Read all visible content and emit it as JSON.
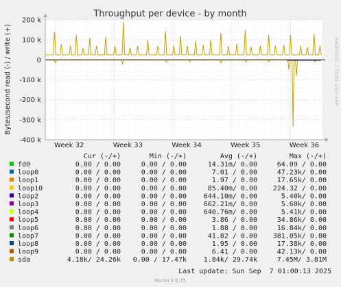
{
  "title": "Throughput per device - by month",
  "side_label": "RRDTOOL / TOBI OETIKER",
  "footer": "Munin 2.0.75",
  "last_update": "Last update: Sun Sep  7 01:00:13 2025",
  "chart_data": {
    "type": "line",
    "title": "Throughput per device - by month",
    "ylabel": "Bytes/second read (-) / write (+)",
    "ylim": [
      -400000,
      200000
    ],
    "y_ticks": [
      {
        "value": 200000,
        "label": "200 k"
      },
      {
        "value": 100000,
        "label": "100 k"
      },
      {
        "value": 0,
        "label": "0"
      },
      {
        "value": -100000,
        "label": "-100 k"
      },
      {
        "value": -200000,
        "label": "-200 k"
      },
      {
        "value": -300000,
        "label": "-300 k"
      },
      {
        "value": -400000,
        "label": "-400 k"
      }
    ],
    "x_ticks": [
      "Week 32",
      "Week 33",
      "Week 34",
      "Week 35",
      "Week 36"
    ],
    "x_range_days": [
      0,
      33
    ],
    "week_positions_days": [
      1.2,
      8.2,
      15.2,
      22.2,
      29.2
    ],
    "series": [
      {
        "name": "sda",
        "color": "#c8a000",
        "write_baseline": 25000,
        "write_peaks": [
          {
            "day": 1.1,
            "value": 140000
          },
          {
            "day": 1.9,
            "value": 80000
          },
          {
            "day": 3.0,
            "value": 70000
          },
          {
            "day": 3.7,
            "value": 125000
          },
          {
            "day": 4.5,
            "value": 60000
          },
          {
            "day": 5.3,
            "value": 110000
          },
          {
            "day": 6.1,
            "value": 70000
          },
          {
            "day": 7.2,
            "value": 115000
          },
          {
            "day": 8.3,
            "value": 70000
          },
          {
            "day": 9.3,
            "value": 190000
          },
          {
            "day": 10.1,
            "value": 60000
          },
          {
            "day": 11.0,
            "value": 70000
          },
          {
            "day": 12.2,
            "value": 100000
          },
          {
            "day": 13.4,
            "value": 70000
          },
          {
            "day": 14.3,
            "value": 145000
          },
          {
            "day": 15.3,
            "value": 70000
          },
          {
            "day": 16.1,
            "value": 120000
          },
          {
            "day": 16.9,
            "value": 70000
          },
          {
            "day": 17.9,
            "value": 95000
          },
          {
            "day": 18.8,
            "value": 75000
          },
          {
            "day": 19.7,
            "value": 100000
          },
          {
            "day": 20.9,
            "value": 135000
          },
          {
            "day": 21.8,
            "value": 70000
          },
          {
            "day": 22.8,
            "value": 80000
          },
          {
            "day": 23.8,
            "value": 150000
          },
          {
            "day": 24.5,
            "value": 65000
          },
          {
            "day": 25.6,
            "value": 70000
          },
          {
            "day": 26.6,
            "value": 125000
          },
          {
            "day": 27.4,
            "value": 70000
          },
          {
            "day": 28.4,
            "value": 75000
          },
          {
            "day": 29.2,
            "value": 125000
          },
          {
            "day": 30.4,
            "value": 70000
          },
          {
            "day": 31.2,
            "value": 65000
          },
          {
            "day": 32.0,
            "value": 130000
          },
          {
            "day": 32.7,
            "value": 70000
          }
        ],
        "read_dips": [
          {
            "day": 1.2,
            "value": -15000
          },
          {
            "day": 9.2,
            "value": -20000
          },
          {
            "day": 14.4,
            "value": -12000
          },
          {
            "day": 17.2,
            "value": -10000
          },
          {
            "day": 20.9,
            "value": -15000
          },
          {
            "day": 23.9,
            "value": -12000
          },
          {
            "day": 26.6,
            "value": -10000
          },
          {
            "day": 29.0,
            "value": -50000
          },
          {
            "day": 29.5,
            "value": -335000
          },
          {
            "day": 29.9,
            "value": -80000
          },
          {
            "day": 32.1,
            "value": -10000
          }
        ]
      },
      {
        "name": "loop2",
        "color": "#1a0a6b",
        "read_line": {
          "from_day": 28.8,
          "to_day": 33,
          "value": -2000
        }
      }
    ]
  },
  "legend": {
    "headers": {
      "cur": "Cur (-/+)",
      "min": "Min (-/+)",
      "avg": "Avg (-/+)",
      "max": "Max (-/+)"
    },
    "rows": [
      {
        "name": "fd0",
        "color": "#00cc00",
        "cur": "0.00 /  0.00",
        "min": "0.00 /  0.00",
        "avg": "14.31m/  0.00",
        "max": "64.09 /  0.00"
      },
      {
        "name": "loop0",
        "color": "#0066b3",
        "cur": "0.00 /  0.00",
        "min": "0.00 /  0.00",
        "avg": "7.01 /  0.00",
        "max": "47.23k/  0.00"
      },
      {
        "name": "loop1",
        "color": "#ff8000",
        "cur": "0.00 /  0.00",
        "min": "0.00 /  0.00",
        "avg": "1.97 /  0.00",
        "max": "17.65k/  0.00"
      },
      {
        "name": "loop10",
        "color": "#ffcc00",
        "cur": "0.00 /  0.00",
        "min": "0.00 /  0.00",
        "avg": "85.40m/  0.00",
        "max": "224.32 /  0.00"
      },
      {
        "name": "loop2",
        "color": "#330099",
        "cur": "0.00 /  0.00",
        "min": "0.00 /  0.00",
        "avg": "644.10m/  0.00",
        "max": "5.40k/  0.00"
      },
      {
        "name": "loop3",
        "color": "#990099",
        "cur": "0.00 /  0.00",
        "min": "0.00 /  0.00",
        "avg": "662.21m/  0.00",
        "max": "5.60k/  0.00"
      },
      {
        "name": "loop4",
        "color": "#ccff00",
        "cur": "0.00 /  0.00",
        "min": "0.00 /  0.00",
        "avg": "640.76m/  0.00",
        "max": "5.41k/  0.00"
      },
      {
        "name": "loop5",
        "color": "#ff0000",
        "cur": "0.00 /  0.00",
        "min": "0.00 /  0.00",
        "avg": "3.86 /  0.00",
        "max": "34.86k/  0.00"
      },
      {
        "name": "loop6",
        "color": "#808080",
        "cur": "0.00 /  0.00",
        "min": "0.00 /  0.00",
        "avg": "1.88 /  0.00",
        "max": "16.84k/  0.00"
      },
      {
        "name": "loop7",
        "color": "#008f00",
        "cur": "0.00 /  0.00",
        "min": "0.00 /  0.00",
        "avg": "41.82 /  0.00",
        "max": "381.05k/  0.00"
      },
      {
        "name": "loop8",
        "color": "#00487d",
        "cur": "0.00 /  0.00",
        "min": "0.00 /  0.00",
        "avg": "1.95 /  0.00",
        "max": "17.38k/  0.00"
      },
      {
        "name": "loop9",
        "color": "#b35a00",
        "cur": "0.00 /  0.00",
        "min": "0.00 /  0.00",
        "avg": "6.41 /  0.00",
        "max": "42.13k/  0.00"
      },
      {
        "name": "sda",
        "color": "#b38f00",
        "cur": "4.18k/ 24.26k",
        "min": "0.00 / 17.47k",
        "avg": "1.84k/ 29.74k",
        "max": "7.45M/  3.81M"
      }
    ]
  }
}
